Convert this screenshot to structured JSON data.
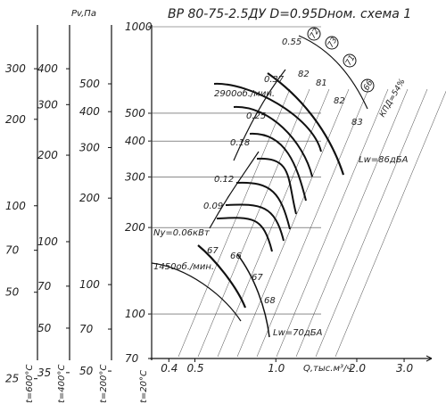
{
  "chart_data": {
    "type": "line",
    "title": "ВР 80-75-2.5ДУ D=0.95Dном. схема 1",
    "x_axis": {
      "label": "Q,тыс.м³/ч",
      "scale": "log",
      "ticks": [
        {
          "v": 0.4,
          "t": "0.4"
        },
        {
          "v": 0.5,
          "t": "0.5"
        },
        {
          "v": 1.0,
          "t": "1.0"
        },
        {
          "v": 2.0,
          "t": "2.0"
        },
        {
          "v": 3.0,
          "t": "3.0"
        }
      ]
    },
    "y_axes": [
      {
        "id": "t20",
        "label": "t=20°C",
        "scale": "log",
        "ticks": [
          "1000",
          "500",
          "400",
          "300",
          "200",
          "100",
          "70"
        ]
      },
      {
        "id": "t200",
        "label": "t=200°C",
        "ticks": [
          "500",
          "400",
          "300",
          "200",
          "100",
          "70",
          "50"
        ]
      },
      {
        "id": "t400",
        "label": "t=400°C",
        "title": "Pv,Па",
        "ticks": [
          "400",
          "300",
          "200",
          "100",
          "70",
          "50",
          "35"
        ]
      },
      {
        "id": "t600",
        "label": "t=600°C",
        "ticks": [
          "300",
          "200",
          "100",
          "70",
          "50",
          "25"
        ]
      }
    ],
    "speed_labels": [
      {
        "text": "2900об./мин."
      },
      {
        "text": "1450об./мин."
      }
    ],
    "power_labels": [
      "0.55",
      "0.37",
      "0.25",
      "0.18",
      "0.12",
      "0.09",
      "Ny=0.06кВт"
    ],
    "efficiency_labels": [
      "72",
      "73",
      "71",
      "66",
      "КПД=54%"
    ],
    "curve_efficiency_labels": {
      "upper": [
        "82",
        "81",
        "82",
        "83"
      ],
      "lower": [
        "67",
        "66",
        "67",
        "68"
      ]
    },
    "noise_labels": [
      "Lw=86дБА",
      "Lw=70дБА"
    ]
  },
  "colors": {
    "ink": "#111111",
    "grid": "#444444"
  }
}
